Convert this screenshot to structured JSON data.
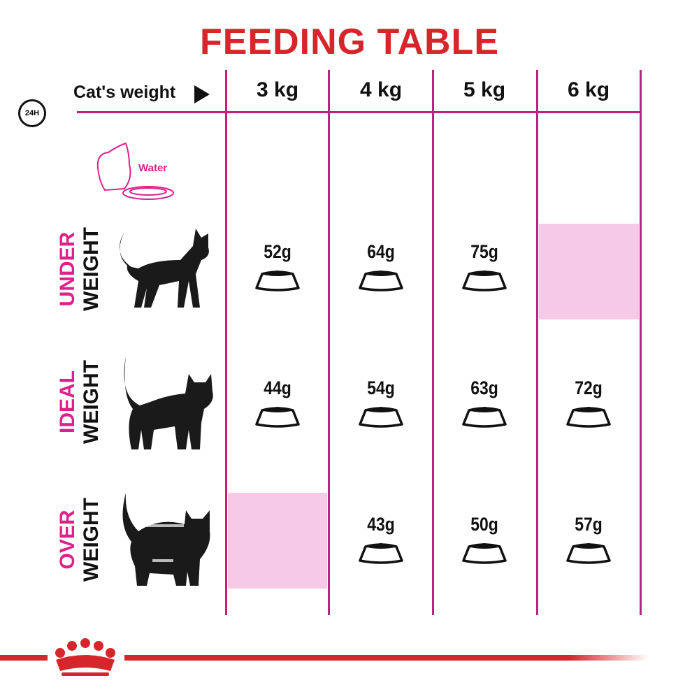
{
  "title": "FEEDING TABLE",
  "header": {
    "clock_label": "24H",
    "weight_label": "Cat's weight",
    "columns": [
      "3 kg",
      "4 kg",
      "5 kg",
      "6 kg"
    ]
  },
  "water_label": "Water",
  "rows": [
    {
      "label_top": "UNDER",
      "label_bottom": "WEIGHT",
      "values": [
        "52g",
        "64g",
        "75g",
        null
      ]
    },
    {
      "label_top": "IDEAL",
      "label_bottom": "WEIGHT",
      "values": [
        "44g",
        "54g",
        "63g",
        "72g"
      ]
    },
    {
      "label_top": "OVER",
      "label_bottom": "WEIGHT",
      "values": [
        null,
        "43g",
        "50g",
        "57g"
      ]
    }
  ],
  "colors": {
    "title": "#d7262b",
    "grid": "#c2207e",
    "accent": "#e0208a",
    "empty_cell": "#f6c9e7"
  },
  "brand_icon": "crown-logo-icon"
}
